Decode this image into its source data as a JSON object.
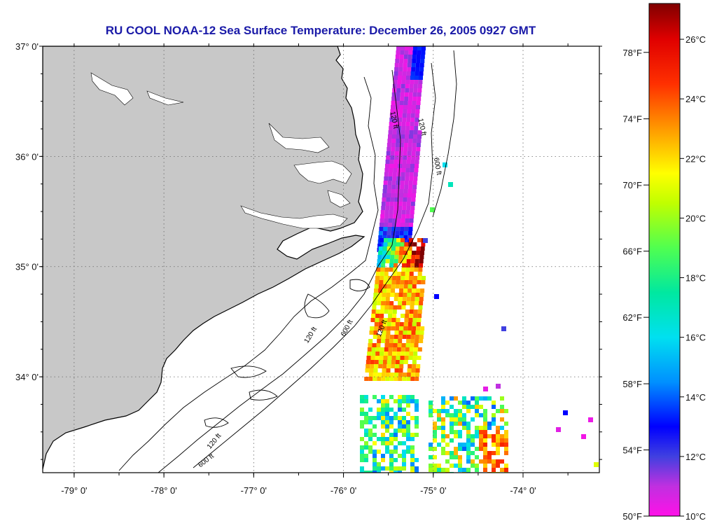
{
  "title": "RU COOL  NOAA-12  Sea Surface Temperature:  December 26, 2005 0927 GMT",
  "colors": {
    "title": "#1a1aa8",
    "land": "#c8c8c8",
    "water": "#ffffff",
    "grid": "#666666",
    "contour": "#000000"
  },
  "map": {
    "lon_range": [
      -79.35,
      -73.15
    ],
    "lat_range": [
      33.13,
      37.0
    ],
    "lon_ticks": [
      {
        "value": -79,
        "label": "-79° 0'"
      },
      {
        "value": -78,
        "label": "-78° 0'"
      },
      {
        "value": -77,
        "label": "-77° 0'"
      },
      {
        "value": -76,
        "label": "-76° 0'"
      },
      {
        "value": -75,
        "label": "-75° 0'"
      },
      {
        "value": -74,
        "label": "-74° 0'"
      }
    ],
    "lat_ticks": [
      {
        "value": 37,
        "label": "37° 0'"
      },
      {
        "value": 36,
        "label": "36° 0'"
      },
      {
        "value": 35,
        "label": "35° 0'"
      },
      {
        "value": 34,
        "label": "34° 0'"
      }
    ],
    "grid": true,
    "contour_labels": [
      "120 ft",
      "120 ft",
      "600 ft",
      "120 ft",
      "120 ft",
      "600 ft",
      "120 ft",
      "600 ft"
    ]
  },
  "colorbar": {
    "f_ticks": [
      {
        "temp_c": 25.56,
        "label": "78°F"
      },
      {
        "temp_c": 23.33,
        "label": "74°F"
      },
      {
        "temp_c": 21.11,
        "label": "70°F"
      },
      {
        "temp_c": 18.89,
        "label": "66°F"
      },
      {
        "temp_c": 16.67,
        "label": "62°F"
      },
      {
        "temp_c": 14.44,
        "label": "58°F"
      },
      {
        "temp_c": 12.22,
        "label": "54°F"
      },
      {
        "temp_c": 10.0,
        "label": "50°F"
      }
    ],
    "c_ticks": [
      {
        "temp_c": 26,
        "label": "26°C"
      },
      {
        "temp_c": 24,
        "label": "24°C"
      },
      {
        "temp_c": 22,
        "label": "22°C"
      },
      {
        "temp_c": 20,
        "label": "20°C"
      },
      {
        "temp_c": 18,
        "label": "18°C"
      },
      {
        "temp_c": 16,
        "label": "16°C"
      },
      {
        "temp_c": 14,
        "label": "14°C"
      },
      {
        "temp_c": 12,
        "label": "12°C"
      },
      {
        "temp_c": 10,
        "label": "10°C"
      }
    ],
    "range_c": [
      10,
      27.2
    ],
    "stops": [
      {
        "temp_c": 10.0,
        "color": "#ff10e8"
      },
      {
        "temp_c": 11.0,
        "color": "#c030e0"
      },
      {
        "temp_c": 12.0,
        "color": "#4040e0"
      },
      {
        "temp_c": 13.0,
        "color": "#0000ff"
      },
      {
        "temp_c": 14.5,
        "color": "#0090ff"
      },
      {
        "temp_c": 16.0,
        "color": "#00e0f0"
      },
      {
        "temp_c": 17.5,
        "color": "#00e8a0"
      },
      {
        "temp_c": 19.0,
        "color": "#50ff50"
      },
      {
        "temp_c": 20.5,
        "color": "#c0ff00"
      },
      {
        "temp_c": 21.5,
        "color": "#ffff00"
      },
      {
        "temp_c": 23.0,
        "color": "#ff9900"
      },
      {
        "temp_c": 24.5,
        "color": "#ff3000"
      },
      {
        "temp_c": 26.0,
        "color": "#e00000"
      },
      {
        "temp_c": 27.2,
        "color": "#800000"
      }
    ]
  }
}
